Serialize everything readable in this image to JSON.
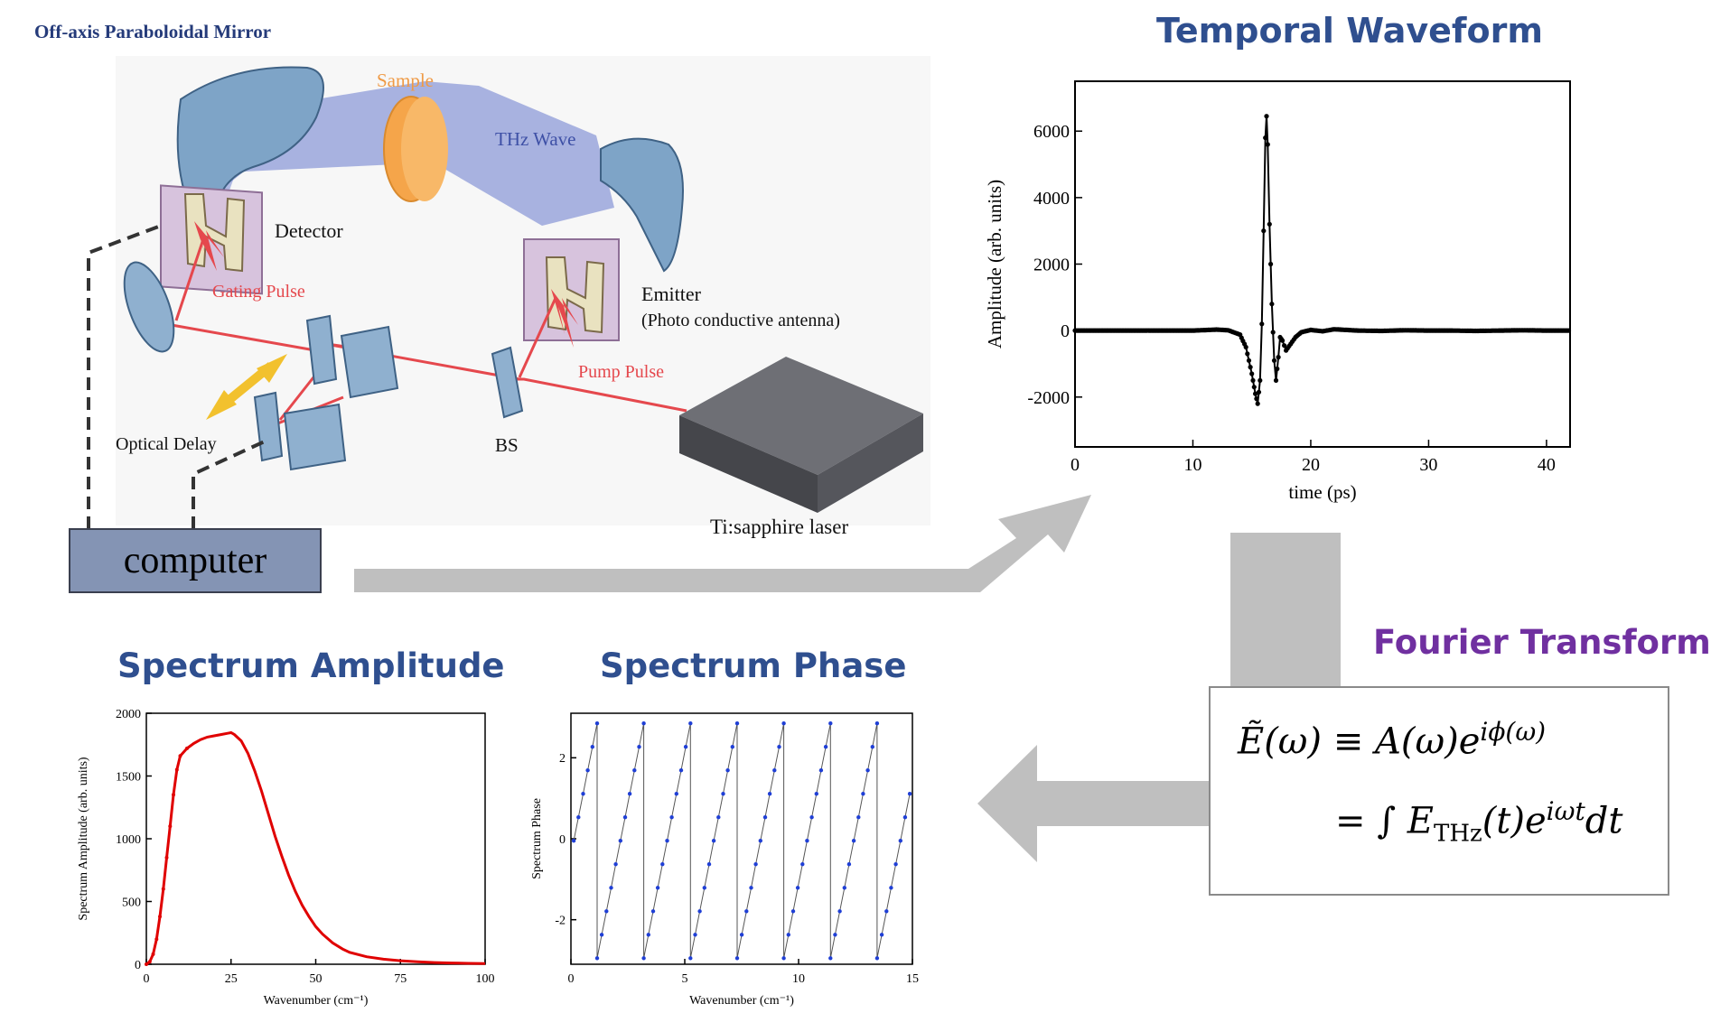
{
  "setup": {
    "labels": {
      "mirror": "Off-axis Paraboloidal Mirror",
      "sample": "Sample",
      "thz_wave": "THz Wave",
      "detector": "Detector",
      "gating_pulse": "Gating Pulse",
      "emitter": "Emitter",
      "emitter_sub": "(Photo conductive antenna)",
      "pump_pulse": "Pump Pulse",
      "optical_delay": "Optical Delay",
      "bs": "BS",
      "laser": "Ti:sapphire laser",
      "computer": "computer"
    },
    "colors": {
      "beam": "#e5484d",
      "thz": "#7f8fd6",
      "sample": "#f5a54a",
      "mirror": "#6f93b8",
      "laser": "#55565c",
      "antenna": "#d7c3dd",
      "delay_arrow": "#f2c12e"
    }
  },
  "titles": {
    "temporal": "Temporal Waveform",
    "spectrum_amplitude": "Spectrum Amplitude",
    "spectrum_phase": "Spectrum Phase",
    "fourier": "Fourier Transform"
  },
  "equation": {
    "line1": "Ẽ(ω) ≡ A(ω)e",
    "line1_sup": "iϕ(ω)",
    "line2_prefix": "= ∫ E",
    "line2_sub": "THz",
    "line2_mid": "(t)e",
    "line2_sup": "iωt",
    "line2_end": "dt"
  },
  "arrow_color": "#bfbfbf",
  "chart_data": [
    {
      "id": "temporal",
      "type": "scatter",
      "title": "Temporal Waveform",
      "xlabel": "time (ps)",
      "ylabel": "Amplitude (arb. units)",
      "xlim": [
        0,
        42
      ],
      "ylim": [
        -3500,
        7500
      ],
      "xticks": [
        0,
        10,
        20,
        30,
        40
      ],
      "yticks": [
        -2000,
        0,
        2000,
        4000,
        6000
      ],
      "color": "#000000",
      "points": [
        [
          0,
          0
        ],
        [
          2,
          0
        ],
        [
          4,
          0
        ],
        [
          6,
          0
        ],
        [
          8,
          0
        ],
        [
          10,
          0
        ],
        [
          12,
          30
        ],
        [
          13,
          10
        ],
        [
          14,
          -120
        ],
        [
          14.5,
          -500
        ],
        [
          15,
          -1300
        ],
        [
          15.3,
          -1900
        ],
        [
          15.5,
          -2200
        ],
        [
          15.7,
          -1500
        ],
        [
          15.85,
          200
        ],
        [
          16,
          3000
        ],
        [
          16.15,
          5800
        ],
        [
          16.25,
          6450
        ],
        [
          16.35,
          5600
        ],
        [
          16.5,
          3200
        ],
        [
          16.7,
          800
        ],
        [
          16.9,
          -900
        ],
        [
          17.05,
          -1500
        ],
        [
          17.25,
          -800
        ],
        [
          17.4,
          -200
        ],
        [
          17.6,
          -300
        ],
        [
          17.9,
          -600
        ],
        [
          18.3,
          -400
        ],
        [
          18.7,
          -200
        ],
        [
          19.2,
          -50
        ],
        [
          20,
          20
        ],
        [
          21,
          -20
        ],
        [
          22,
          40
        ],
        [
          24,
          0
        ],
        [
          26,
          -10
        ],
        [
          28,
          10
        ],
        [
          30,
          0
        ],
        [
          32,
          0
        ],
        [
          34,
          -10
        ],
        [
          36,
          0
        ],
        [
          38,
          10
        ],
        [
          40,
          0
        ],
        [
          42,
          0
        ]
      ]
    },
    {
      "id": "amplitude",
      "type": "line",
      "title": "Spectrum Amplitude",
      "xlabel": "Wavenumber (cm⁻¹)",
      "ylabel": "Spectrum Amplitude (arb. units)",
      "xlim": [
        0,
        100
      ],
      "ylim": [
        0,
        2000
      ],
      "xticks": [
        0,
        25,
        50,
        75,
        100
      ],
      "yticks": [
        0,
        500,
        1000,
        1500,
        2000
      ],
      "color": "#e00000",
      "points": [
        [
          0,
          0
        ],
        [
          1,
          20
        ],
        [
          2,
          80
        ],
        [
          3,
          200
        ],
        [
          4,
          380
        ],
        [
          5,
          600
        ],
        [
          6,
          850
        ],
        [
          7,
          1100
        ],
        [
          8,
          1350
        ],
        [
          9,
          1550
        ],
        [
          10,
          1660
        ],
        [
          12,
          1720
        ],
        [
          14,
          1760
        ],
        [
          16,
          1790
        ],
        [
          18,
          1810
        ],
        [
          20,
          1820
        ],
        [
          22,
          1830
        ],
        [
          24,
          1840
        ],
        [
          25,
          1845
        ],
        [
          26,
          1830
        ],
        [
          28,
          1780
        ],
        [
          30,
          1680
        ],
        [
          32,
          1540
        ],
        [
          34,
          1380
        ],
        [
          36,
          1200
        ],
        [
          38,
          1020
        ],
        [
          40,
          860
        ],
        [
          42,
          710
        ],
        [
          44,
          580
        ],
        [
          46,
          470
        ],
        [
          48,
          380
        ],
        [
          50,
          300
        ],
        [
          52,
          240
        ],
        [
          55,
          170
        ],
        [
          58,
          120
        ],
        [
          60,
          95
        ],
        [
          65,
          60
        ],
        [
          70,
          40
        ],
        [
          75,
          28
        ],
        [
          80,
          20
        ],
        [
          85,
          14
        ],
        [
          90,
          10
        ],
        [
          95,
          7
        ],
        [
          100,
          5
        ]
      ]
    },
    {
      "id": "phase",
      "type": "line",
      "title": "Spectrum Phase",
      "xlabel": "Wavenumber (cm⁻¹)",
      "ylabel": "Spectrum Phase",
      "xlim": [
        0,
        15
      ],
      "ylim": [
        -3.1,
        3.1
      ],
      "xticks": [
        0,
        5,
        10,
        15
      ],
      "yticks": [
        -2,
        0,
        2
      ],
      "color": "#1f3fd6",
      "period": 2.05,
      "offset": 0.9,
      "points_per_period": 10
    }
  ]
}
